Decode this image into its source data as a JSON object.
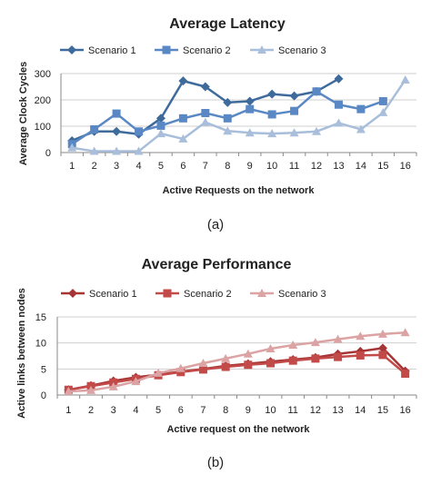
{
  "chart_data": [
    {
      "type": "line",
      "title": "Average Latency",
      "xlabel": "Active Requests on the network",
      "ylabel": "Average Clock Cycles",
      "caption": "(a)",
      "ylim": [
        0,
        300
      ],
      "yticks": [
        0,
        100,
        200,
        300
      ],
      "xticks": [
        1,
        2,
        3,
        4,
        5,
        6,
        7,
        8,
        9,
        10,
        11,
        12,
        13,
        14,
        15,
        16
      ],
      "grid": true,
      "legend": "top",
      "series": [
        {
          "name": "Scenario 1",
          "color": "#3e6b9c",
          "marker": "diamond",
          "x": [
            1,
            2,
            3,
            4,
            5,
            6,
            7,
            8,
            9,
            10,
            11,
            12,
            13
          ],
          "values": [
            45,
            80,
            80,
            70,
            130,
            272,
            250,
            190,
            195,
            222,
            215,
            232,
            280
          ]
        },
        {
          "name": "Scenario 2",
          "color": "#5a88c4",
          "marker": "square",
          "x": [
            1,
            2,
            3,
            4,
            5,
            6,
            7,
            8,
            9,
            10,
            11,
            12,
            13,
            14,
            15
          ],
          "values": [
            32,
            88,
            148,
            80,
            102,
            130,
            150,
            130,
            165,
            145,
            158,
            232,
            182,
            165,
            195
          ]
        },
        {
          "name": "Scenario 3",
          "color": "#a8bedb",
          "marker": "triangle",
          "x": [
            1,
            2,
            3,
            4,
            5,
            6,
            7,
            8,
            9,
            10,
            11,
            12,
            13,
            14,
            15,
            16
          ],
          "values": [
            18,
            5,
            5,
            5,
            72,
            52,
            115,
            82,
            75,
            72,
            75,
            80,
            112,
            88,
            152,
            276
          ]
        }
      ]
    },
    {
      "type": "line",
      "title": "Average Performance",
      "xlabel": "Active request on the network",
      "ylabel": "Active links between nodes",
      "caption": "(b)",
      "ylim": [
        0,
        15
      ],
      "yticks": [
        0,
        5,
        10,
        15
      ],
      "xticks": [
        1,
        2,
        3,
        4,
        5,
        6,
        7,
        8,
        9,
        10,
        11,
        12,
        13,
        14,
        15,
        16
      ],
      "grid": true,
      "legend": "top",
      "series": [
        {
          "name": "Scenario 1",
          "color": "#a63535",
          "marker": "diamond",
          "x": [
            1,
            2,
            3,
            4,
            5,
            6,
            7,
            8,
            9,
            10,
            11,
            12,
            13,
            14,
            15,
            16
          ],
          "values": [
            1.0,
            1.8,
            2.7,
            3.4,
            3.9,
            4.5,
            5.0,
            5.6,
            6.0,
            6.4,
            6.8,
            7.2,
            7.9,
            8.4,
            9.0,
            4.6
          ]
        },
        {
          "name": "Scenario 2",
          "color": "#c24a48",
          "marker": "square",
          "x": [
            1,
            2,
            3,
            4,
            5,
            6,
            7,
            8,
            9,
            10,
            11,
            12,
            13,
            14,
            15,
            16
          ],
          "values": [
            1.0,
            1.7,
            2.4,
            3.1,
            3.8,
            4.4,
            4.9,
            5.4,
            5.8,
            6.1,
            6.6,
            7.0,
            7.3,
            7.6,
            7.7,
            4.1
          ]
        },
        {
          "name": "Scenario 3",
          "color": "#dba3a3",
          "marker": "triangle",
          "x": [
            1,
            2,
            3,
            4,
            5,
            6,
            7,
            8,
            9,
            10,
            11,
            12,
            13,
            14,
            15,
            16
          ],
          "values": [
            0.7,
            0.9,
            1.6,
            2.6,
            4.2,
            5.1,
            6.1,
            7.0,
            7.9,
            8.9,
            9.6,
            10.1,
            10.7,
            11.3,
            11.7,
            12.0
          ]
        }
      ]
    }
  ]
}
